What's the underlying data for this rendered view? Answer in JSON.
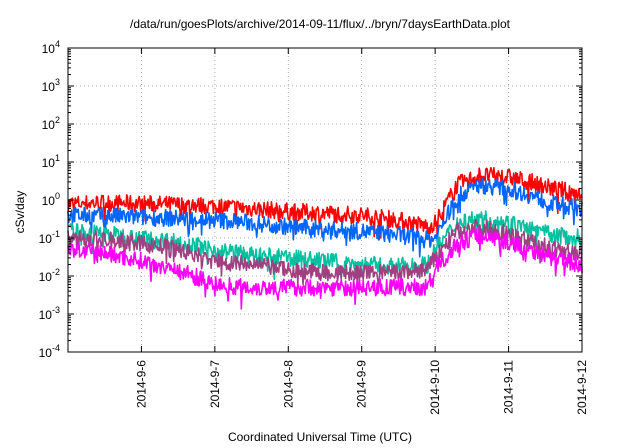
{
  "chart_data": {
    "type": "line",
    "title": "/data/run/goesPlots/archive/2014-09-11/flux/../bryn/7daysEarthData.plot",
    "xlabel": "Coordinated Universal Time (UTC)",
    "ylabel": "cSv/day",
    "yscale": "log",
    "ylim": [
      0.0001,
      10000
    ],
    "xlim": [
      0,
      7
    ],
    "y_ticks": [
      {
        "base": "10",
        "exp": "-4",
        "value": -4
      },
      {
        "base": "10",
        "exp": "-3",
        "value": -3
      },
      {
        "base": "10",
        "exp": "-2",
        "value": -2
      },
      {
        "base": "10",
        "exp": "-1",
        "value": -1
      },
      {
        "base": "10",
        "exp": "0",
        "value": 0
      },
      {
        "base": "10",
        "exp": "1",
        "value": 1
      },
      {
        "base": "10",
        "exp": "2",
        "value": 2
      },
      {
        "base": "10",
        "exp": "3",
        "value": 3
      },
      {
        "base": "10",
        "exp": "4",
        "value": 4
      }
    ],
    "x_ticks": [
      "2014-9-6",
      "2014-9-7",
      "2014-9-8",
      "2014-9-9",
      "2014-9-10",
      "2014-9-11",
      "2014-9-12"
    ],
    "x_tick_days": [
      1,
      2,
      3,
      4,
      5,
      6,
      7
    ],
    "grid": true,
    "series": [
      {
        "color": "#ff0000",
        "x": [
          0,
          0.5,
          1,
          1.5,
          2,
          2.5,
          3,
          3.5,
          4,
          4.5,
          4.9,
          5.0,
          5.3,
          5.6,
          6.0,
          6.3,
          6.6,
          7.0
        ],
        "y": [
          0.8,
          0.85,
          0.8,
          0.75,
          0.7,
          0.6,
          0.5,
          0.45,
          0.4,
          0.3,
          0.2,
          0.25,
          2.5,
          4.5,
          4.0,
          3.0,
          2.0,
          1.5
        ]
      },
      {
        "color": "#0066ff",
        "x": [
          0,
          0.5,
          1,
          1.5,
          2,
          2.5,
          3,
          3.5,
          4,
          4.5,
          4.9,
          5.0,
          5.3,
          5.6,
          6.0,
          6.3,
          6.6,
          7.0
        ],
        "y": [
          0.4,
          0.38,
          0.35,
          0.33,
          0.3,
          0.25,
          0.2,
          0.17,
          0.15,
          0.12,
          0.09,
          0.1,
          1.2,
          2.5,
          2.0,
          1.3,
          0.8,
          0.6
        ]
      },
      {
        "color": "#00c0a0",
        "x": [
          0,
          0.5,
          1,
          1.5,
          2,
          2.5,
          3,
          3.5,
          4,
          4.5,
          4.9,
          5.0,
          5.3,
          5.6,
          6.0,
          6.3,
          6.6,
          7.0
        ],
        "y": [
          0.15,
          0.13,
          0.1,
          0.08,
          0.05,
          0.035,
          0.03,
          0.025,
          0.02,
          0.018,
          0.02,
          0.05,
          0.25,
          0.35,
          0.25,
          0.17,
          0.12,
          0.1
        ]
      },
      {
        "color": "#a04080",
        "x": [
          0,
          0.5,
          1,
          1.5,
          2,
          2.5,
          3,
          3.5,
          4,
          4.5,
          4.9,
          5.0,
          5.3,
          5.6,
          6.0,
          6.3,
          6.6,
          7.0
        ],
        "y": [
          0.1,
          0.09,
          0.07,
          0.05,
          0.025,
          0.02,
          0.015,
          0.012,
          0.012,
          0.012,
          0.015,
          0.03,
          0.15,
          0.2,
          0.13,
          0.08,
          0.05,
          0.04
        ]
      },
      {
        "color": "#ff00ff",
        "x": [
          0,
          0.5,
          1,
          1.5,
          2,
          2.5,
          3,
          3.5,
          4,
          4.5,
          4.9,
          5.0,
          5.3,
          5.6,
          6.0,
          6.3,
          6.6,
          7.0
        ],
        "y": [
          0.05,
          0.04,
          0.025,
          0.015,
          0.006,
          0.005,
          0.005,
          0.005,
          0.005,
          0.005,
          0.005,
          0.015,
          0.07,
          0.12,
          0.08,
          0.05,
          0.03,
          0.02
        ]
      }
    ]
  }
}
